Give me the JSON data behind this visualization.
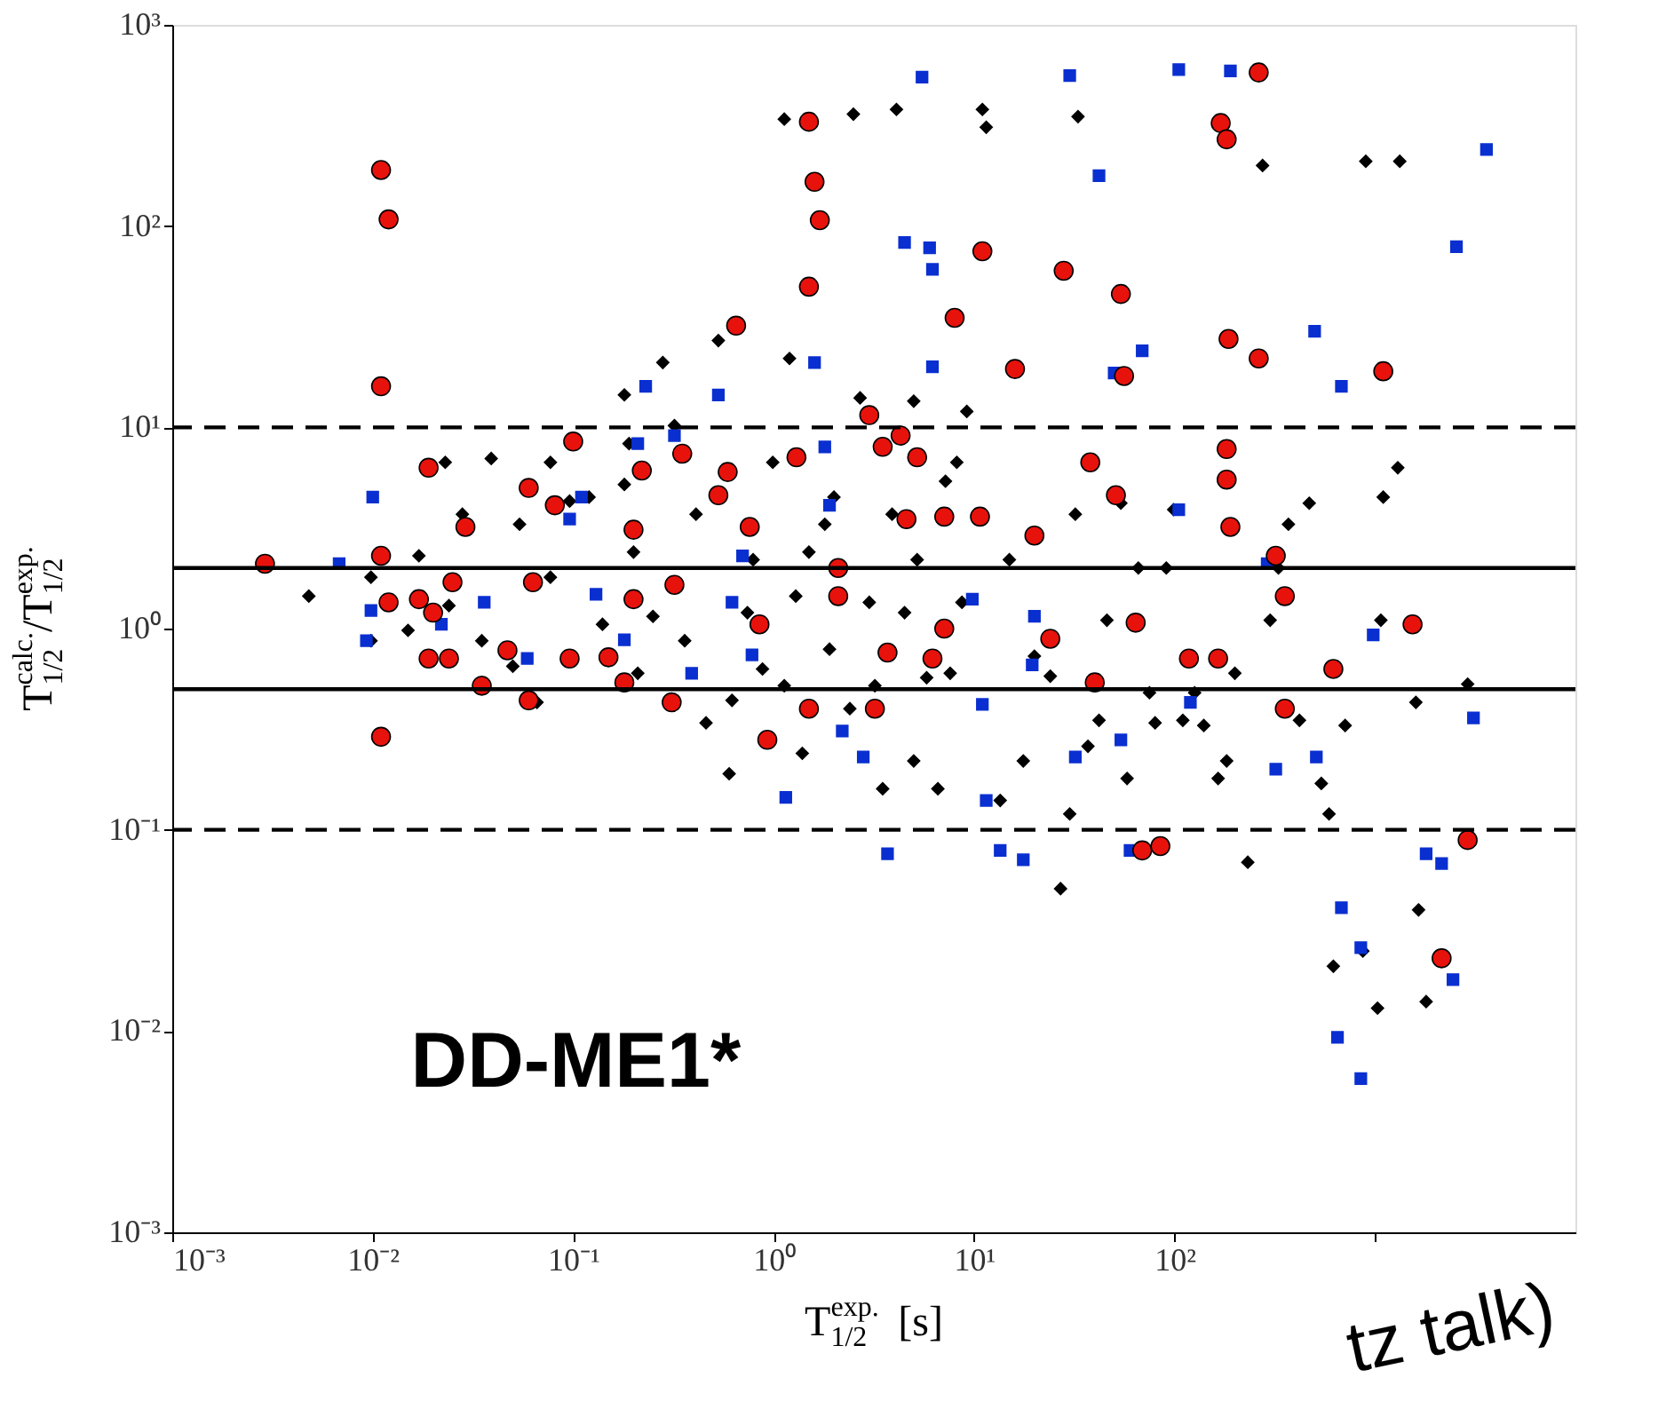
{
  "chart_data": {
    "type": "scatter",
    "xlabel": "T$_{1/2}$$^{exp.}$ [s]",
    "ylabel": "T$_{1/2}$$^{calc.}$/T$_{1/2}$$^{exp.}$",
    "log": "xy",
    "grid": false,
    "legend": false,
    "xlim": [
      0.001,
      10000
    ],
    "ylim": [
      0.001,
      1000
    ],
    "xticks": [
      {
        "value": 0.001,
        "label": "10⁻³"
      },
      {
        "value": 0.01,
        "label": "10⁻²"
      },
      {
        "value": 0.1,
        "label": "10⁻¹"
      },
      {
        "value": 1,
        "label": "10⁰"
      },
      {
        "value": 10,
        "label": "10¹"
      },
      {
        "value": 100,
        "label": "10²"
      },
      {
        "value": 1000,
        "label": null
      }
    ],
    "yticks": [
      {
        "value": 0.001,
        "label": "10⁻³"
      },
      {
        "value": 0.01,
        "label": "10⁻²"
      },
      {
        "value": 0.1,
        "label": "10⁻¹"
      },
      {
        "value": 1,
        "label": "10⁰"
      },
      {
        "value": 10,
        "label": "10¹"
      },
      {
        "value": 100,
        "label": "10²"
      },
      {
        "value": 1000,
        "label": "10³"
      }
    ],
    "ref_lines": [
      {
        "axis": "y",
        "value": 10,
        "line_style": "dashed",
        "color": "#000000"
      },
      {
        "axis": "y",
        "value": 2,
        "line_style": "solid",
        "color": "#000000"
      },
      {
        "axis": "y",
        "value": 0.5,
        "line_style": "solid",
        "color": "#000000"
      },
      {
        "axis": "y",
        "value": 0.1,
        "line_style": "dashed",
        "color": "#000000"
      }
    ],
    "annotations": [
      "DD-ME1*",
      "tz talk)"
    ],
    "series": [
      {
        "color": "#000000",
        "marker": "diamond",
        "x": [
          0.0048,
          0.0098,
          0.0098,
          0.015,
          0.017,
          0.023,
          0.024,
          0.028,
          0.035,
          0.039,
          0.05,
          0.054,
          0.066,
          0.077,
          0.077,
          0.096,
          0.12,
          0.14,
          0.18,
          0.18,
          0.19,
          0.2,
          0.21,
          0.25,
          0.28,
          0.32,
          0.36,
          0.41,
          0.46,
          0.53,
          0.6,
          0.62,
          0.74,
          0.79,
          0.88,
          0.99,
          1.13,
          1.13,
          1.2,
          1.29,
          1.39,
          1.5,
          1.8,
          1.9,
          2.0,
          2.4,
          2.5,
          2.7,
          3.0,
          3.2,
          3.5,
          3.9,
          4.1,
          4.5,
          5.0,
          5.0,
          5.2,
          5.8,
          6.6,
          7.2,
          7.6,
          8.2,
          8.7,
          9.2,
          11,
          11.5,
          13.5,
          15,
          17.6,
          20,
          24,
          27,
          30,
          32,
          33,
          37,
          42,
          46,
          54,
          58,
          66,
          75,
          80,
          91,
          99,
          110,
          126,
          140,
          165,
          182,
          200,
          232,
          300,
          330,
          370,
          420,
          470,
          540,
          590,
          620,
          710,
          870,
          900,
          1030,
          1070,
          1100,
          1300,
          1330,
          1600,
          1650,
          1800,
          2900,
          275
        ],
        "values": [
          1.45,
          1.8,
          0.87,
          0.98,
          2.3,
          6.7,
          1.3,
          3.7,
          0.87,
          7.0,
          0.65,
          3.3,
          0.43,
          6.7,
          1.8,
          4.3,
          4.5,
          1.05,
          14.5,
          5.2,
          8.3,
          2.4,
          0.6,
          1.15,
          21,
          10.2,
          0.87,
          3.7,
          0.34,
          27,
          0.19,
          0.44,
          1.2,
          2.2,
          0.63,
          6.7,
          340,
          0.52,
          22,
          1.45,
          0.24,
          2.4,
          3.3,
          0.79,
          4.5,
          0.4,
          360,
          14,
          1.35,
          0.52,
          0.16,
          3.7,
          380,
          1.2,
          0.22,
          13.5,
          2.2,
          0.57,
          0.16,
          5.4,
          0.6,
          6.7,
          1.35,
          12,
          380,
          310,
          0.14,
          2.2,
          0.22,
          0.73,
          0.58,
          0.051,
          0.12,
          3.7,
          350,
          0.26,
          0.35,
          1.1,
          4.2,
          0.18,
          2.0,
          0.48,
          0.34,
          2.0,
          3.9,
          0.35,
          0.48,
          0.33,
          0.18,
          0.22,
          0.6,
          0.069,
          1.1,
          2.0,
          3.3,
          0.35,
          4.2,
          0.17,
          0.12,
          0.021,
          0.33,
          0.025,
          210,
          0.013,
          1.1,
          4.5,
          6.3,
          210,
          0.43,
          0.04,
          0.014,
          0.53,
          200
        ]
      },
      {
        "color": "#0a2fd0",
        "marker": "square",
        "x": [
          0.01,
          0.0068,
          0.0098,
          0.0093,
          0.022,
          0.036,
          0.059,
          0.096,
          0.11,
          0.13,
          0.18,
          0.21,
          0.23,
          0.32,
          0.39,
          0.53,
          0.62,
          0.7,
          0.78,
          1.15,
          1.6,
          1.8,
          1.9,
          2.2,
          2.8,
          3.7,
          4.5,
          6.0,
          6.2,
          6.2,
          5.5,
          9.8,
          11,
          11.5,
          13.5,
          17.6,
          30,
          42,
          50,
          69,
          54,
          60,
          32,
          20,
          19.5,
          105,
          190,
          105,
          120,
          290,
          320,
          500,
          510,
          680,
          680,
          650,
          850,
          850,
          1800,
          2150,
          2450,
          2550,
          3100,
          3600,
          980
        ],
        "values": [
          4.5,
          2.1,
          1.23,
          0.87,
          1.05,
          1.35,
          0.71,
          3.5,
          4.5,
          1.48,
          0.88,
          8.3,
          16,
          9.1,
          0.6,
          14.5,
          1.35,
          2.3,
          0.74,
          0.145,
          21,
          8.0,
          4.1,
          0.31,
          0.23,
          0.076,
          83,
          78,
          20,
          61,
          550,
          1.4,
          0.42,
          0.14,
          0.079,
          0.071,
          560,
          178,
          18.6,
          24,
          0.28,
          0.079,
          0.23,
          1.15,
          0.66,
          600,
          590,
          3.9,
          0.43,
          2.1,
          0.2,
          30,
          0.23,
          16,
          0.041,
          0.0093,
          0.0058,
          0.026,
          0.076,
          0.068,
          0.018,
          79,
          0.36,
          240,
          0.93
        ]
      },
      {
        "color": "#e8120c",
        "marker": "circle",
        "x": [
          0.0029,
          0.019,
          0.011,
          0.012,
          0.02,
          0.019,
          0.024,
          0.029,
          0.035,
          0.06,
          0.06,
          0.081,
          0.1,
          0.011,
          0.012,
          0.011,
          0.011,
          0.017,
          0.063,
          0.025,
          0.047,
          0.096,
          0.15,
          0.18,
          0.2,
          0.2,
          0.35,
          0.22,
          0.65,
          0.59,
          0.53,
          0.76,
          0.31,
          0.85,
          0.93,
          1.5,
          1.3,
          1.5,
          1.5,
          1.6,
          1.7,
          2.1,
          3.0,
          3.5,
          4.3,
          5.2,
          8.0,
          11,
          10.7,
          16,
          20,
          28,
          38,
          54,
          56,
          51,
          69,
          85,
          182,
          182,
          190,
          170,
          182,
          186,
          263,
          263,
          320,
          355,
          1100,
          1540,
          2150,
          2900,
          620,
          355,
          118,
          165,
          64,
          40,
          24,
          7.1,
          6.2,
          3.7,
          3.2,
          2.1,
          0.32,
          4.6,
          7.1
        ],
        "values": [
          2.1,
          6.3,
          2.3,
          1.35,
          1.2,
          0.71,
          0.71,
          3.2,
          0.52,
          5.0,
          0.44,
          4.1,
          8.5,
          190,
          108,
          16,
          0.29,
          1.4,
          1.7,
          1.7,
          0.78,
          0.71,
          0.72,
          0.54,
          1.4,
          3.1,
          7.4,
          6.1,
          32,
          6.0,
          4.6,
          3.2,
          0.43,
          1.05,
          0.28,
          0.4,
          7.1,
          50,
          330,
          166,
          107,
          1.45,
          11.5,
          8.0,
          9.1,
          7.1,
          35,
          75,
          3.6,
          19.5,
          2.9,
          60,
          6.7,
          46,
          18,
          4.6,
          0.079,
          0.083,
          7.8,
          5.5,
          3.2,
          325,
          270,
          27.5,
          22,
          580,
          2.3,
          1.45,
          19,
          1.05,
          0.023,
          0.089,
          0.63,
          0.4,
          0.71,
          0.71,
          1.07,
          0.54,
          0.89,
          1.0,
          0.71,
          0.76,
          0.4,
          2.0,
          1.65,
          3.5,
          3.6
        ]
      }
    ]
  }
}
